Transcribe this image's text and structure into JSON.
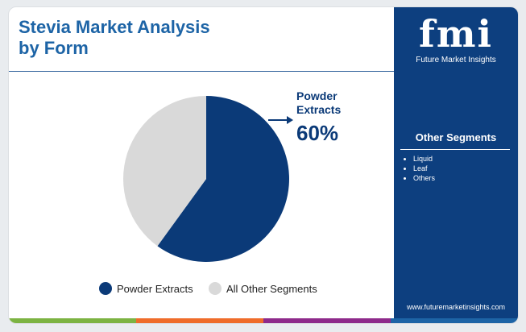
{
  "chart_data": {
    "type": "pie",
    "title": "Stevia Market Analysis by Form",
    "categories": [
      "Powder Extracts",
      "All Other Segments"
    ],
    "values": [
      60,
      40
    ],
    "value_labels": [
      "60%",
      null
    ],
    "colors": [
      "#0b3a78",
      "#d9d9d9"
    ]
  },
  "brand": {
    "logo": "fmi",
    "name": "Future Market Insights",
    "url": "www.futuremarketinsights.com"
  },
  "side_panel": {
    "heading": "Other Segments",
    "items": [
      "Liquid",
      "Leaf",
      "Others"
    ]
  }
}
